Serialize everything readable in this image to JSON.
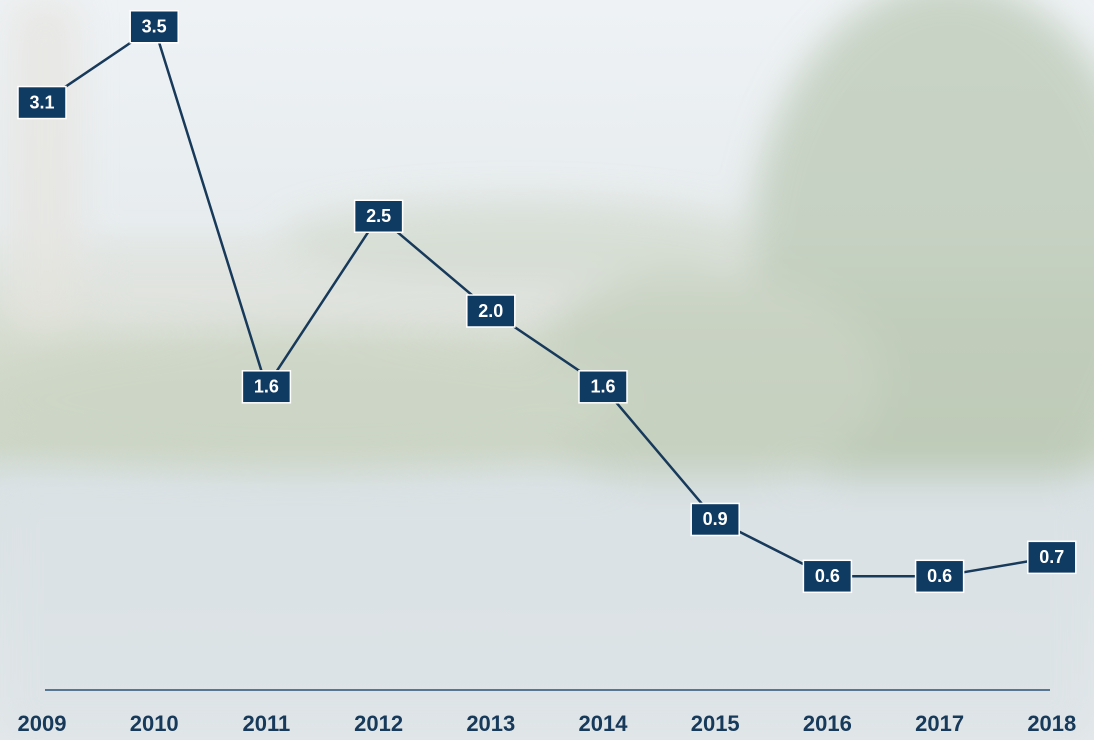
{
  "chart_data": {
    "type": "line",
    "categories": [
      "2009",
      "2010",
      "2011",
      "2012",
      "2013",
      "2014",
      "2015",
      "2016",
      "2017",
      "2018"
    ],
    "values": [
      3.1,
      3.5,
      1.6,
      2.5,
      2.0,
      1.6,
      0.9,
      0.6,
      0.6,
      0.7
    ],
    "value_labels": [
      "3.1",
      "3.5",
      "1.6",
      "2.5",
      "2.0",
      "1.6",
      "0.9",
      "0.6",
      "0.6",
      "0.7"
    ],
    "color": "#17395a"
  }
}
